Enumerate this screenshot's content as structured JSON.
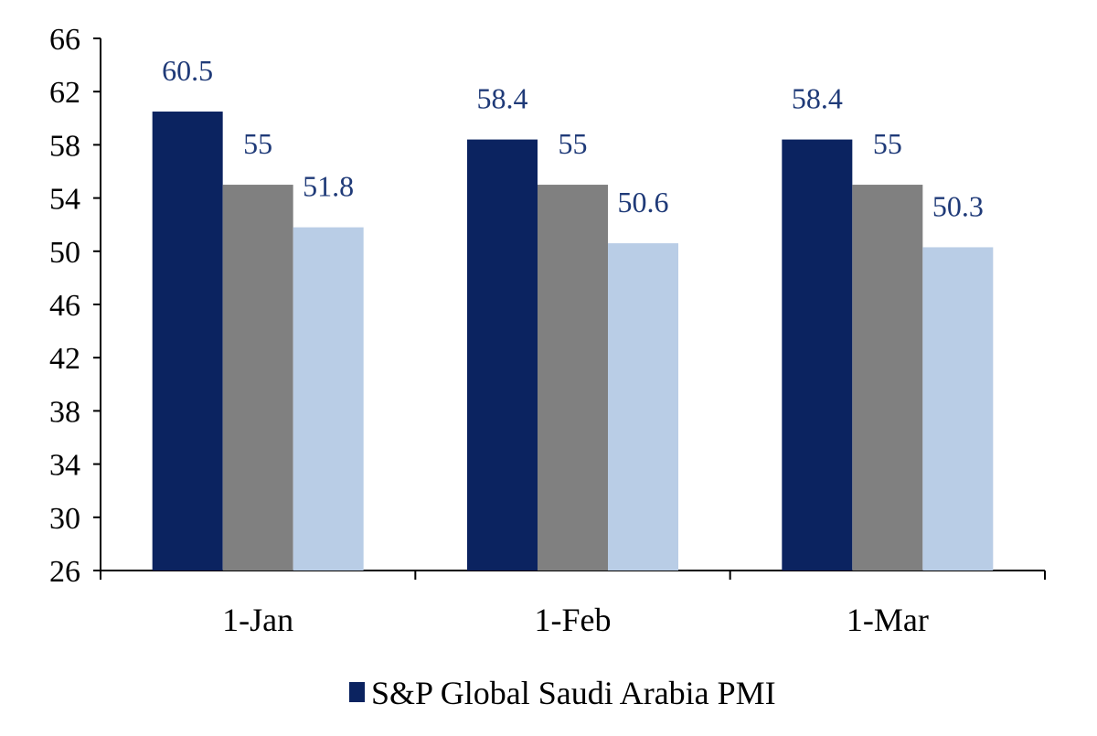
{
  "chart_data": {
    "type": "bar",
    "categories": [
      "1-Jan",
      "1-Feb",
      "1-Mar"
    ],
    "series": [
      {
        "name": "S&P Global Saudi Arabia PMI",
        "values": [
          60.5,
          58.4,
          58.4
        ],
        "color": "#0b2360",
        "show_in_legend": true
      },
      {
        "values": [
          55,
          55,
          55
        ],
        "color": "#808080",
        "show_in_legend": false
      },
      {
        "values": [
          51.8,
          50.6,
          50.3
        ],
        "color": "#b9cde6",
        "show_in_legend": false
      }
    ],
    "data_labels": [
      [
        "60.5",
        "55",
        "51.8"
      ],
      [
        "58.4",
        "55",
        "50.6"
      ],
      [
        "58.4",
        "55",
        "50.3"
      ]
    ],
    "data_label_color": "#1f3a78",
    "y_ticks": [
      "26",
      "30",
      "34",
      "38",
      "42",
      "46",
      "50",
      "54",
      "58",
      "62",
      "66"
    ],
    "ylim": [
      26,
      66
    ],
    "grid": false,
    "legend_position": "bottom-center",
    "title": "",
    "xlabel": "",
    "ylabel": ""
  }
}
